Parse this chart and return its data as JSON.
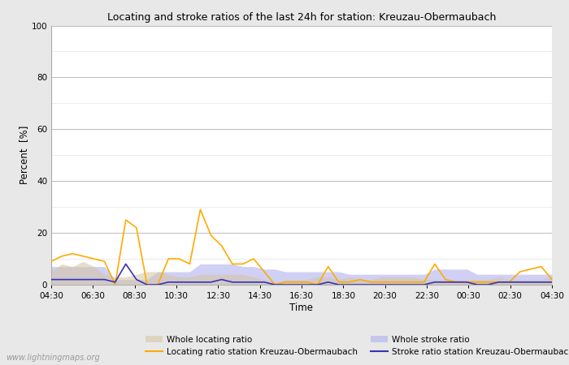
{
  "title": "Locating and stroke ratios of the last 24h for station: Kreuzau-Obermaubach",
  "xlabel": "Time",
  "ylabel": "Percent  [%]",
  "ylim": [
    0,
    100
  ],
  "yticks": [
    0,
    20,
    40,
    60,
    80,
    100
  ],
  "watermark": "www.lightningmaps.org",
  "time_labels": [
    "04:30",
    "06:30",
    "08:30",
    "10:30",
    "12:30",
    "14:30",
    "16:30",
    "18:30",
    "20:30",
    "22:30",
    "00:30",
    "02:30",
    "04:30"
  ],
  "background_color": "#e8e8e8",
  "plot_bg_color": "#ffffff",
  "locating_line_color": "#ffaa00",
  "stroke_line_color": "#3333bb",
  "locating_fill_color": "#d4c4a0",
  "stroke_fill_color": "#aaaaee",
  "locating_fill_alpha": 0.55,
  "stroke_fill_alpha": 0.55,
  "whole_locating": [
    5,
    8,
    7,
    9,
    7,
    4,
    3,
    3,
    4,
    5,
    5,
    4,
    3,
    3,
    4,
    4,
    4,
    4,
    4,
    3,
    2,
    1,
    2,
    2,
    2,
    3,
    3,
    2,
    3,
    2,
    2,
    3,
    3,
    3,
    3,
    2,
    2,
    2,
    2,
    2,
    2,
    2,
    3,
    2,
    2,
    2,
    2,
    3
  ],
  "whole_stroke": [
    7,
    7,
    7,
    7,
    7,
    7,
    2,
    2,
    2,
    2,
    5,
    5,
    5,
    5,
    8,
    8,
    8,
    8,
    7,
    7,
    6,
    6,
    5,
    5,
    5,
    5,
    5,
    5,
    4,
    4,
    4,
    4,
    4,
    4,
    4,
    4,
    6,
    6,
    6,
    6,
    4,
    4,
    4,
    4,
    4,
    4,
    4,
    4
  ],
  "locating_station": [
    9,
    11,
    12,
    11,
    10,
    9,
    0,
    25,
    22,
    0,
    0,
    10,
    10,
    8,
    29,
    19,
    15,
    8,
    8,
    10,
    5,
    0,
    1,
    1,
    1,
    0,
    7,
    1,
    1,
    2,
    1,
    1,
    1,
    1,
    1,
    1,
    8,
    2,
    1,
    1,
    1,
    1,
    1,
    1,
    5,
    6,
    7,
    2
  ],
  "stroke_station": [
    2,
    2,
    2,
    2,
    2,
    2,
    1,
    8,
    2,
    0,
    0,
    1,
    1,
    1,
    1,
    1,
    2,
    1,
    1,
    1,
    1,
    0,
    0,
    0,
    0,
    0,
    1,
    0,
    0,
    0,
    0,
    0,
    0,
    0,
    0,
    0,
    1,
    1,
    1,
    1,
    0,
    0,
    1,
    1,
    1,
    1,
    1,
    1
  ]
}
